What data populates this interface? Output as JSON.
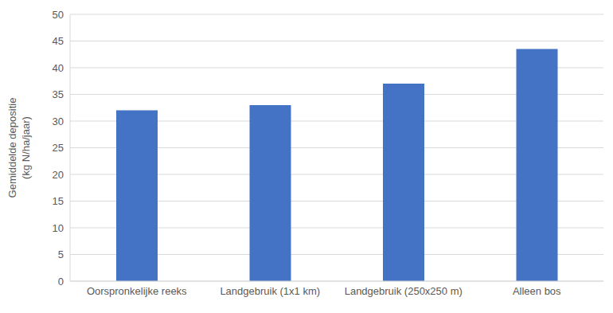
{
  "chart_data": {
    "type": "bar",
    "ylabel": "Gemiddelde depositie (kg N/ha/jaar)",
    "categories": [
      "Oorspronkelijke reeks",
      "Landgebruik (1x1 km)",
      "Landgebruik (250x250 m)",
      "Alleen bos"
    ],
    "values": [
      32,
      33,
      37,
      43.5
    ],
    "color": "#4472c4",
    "ylim": [
      0,
      50
    ],
    "yticks": [
      0,
      5,
      10,
      15,
      20,
      25,
      30,
      35,
      40,
      45,
      50
    ],
    "grid": true
  }
}
